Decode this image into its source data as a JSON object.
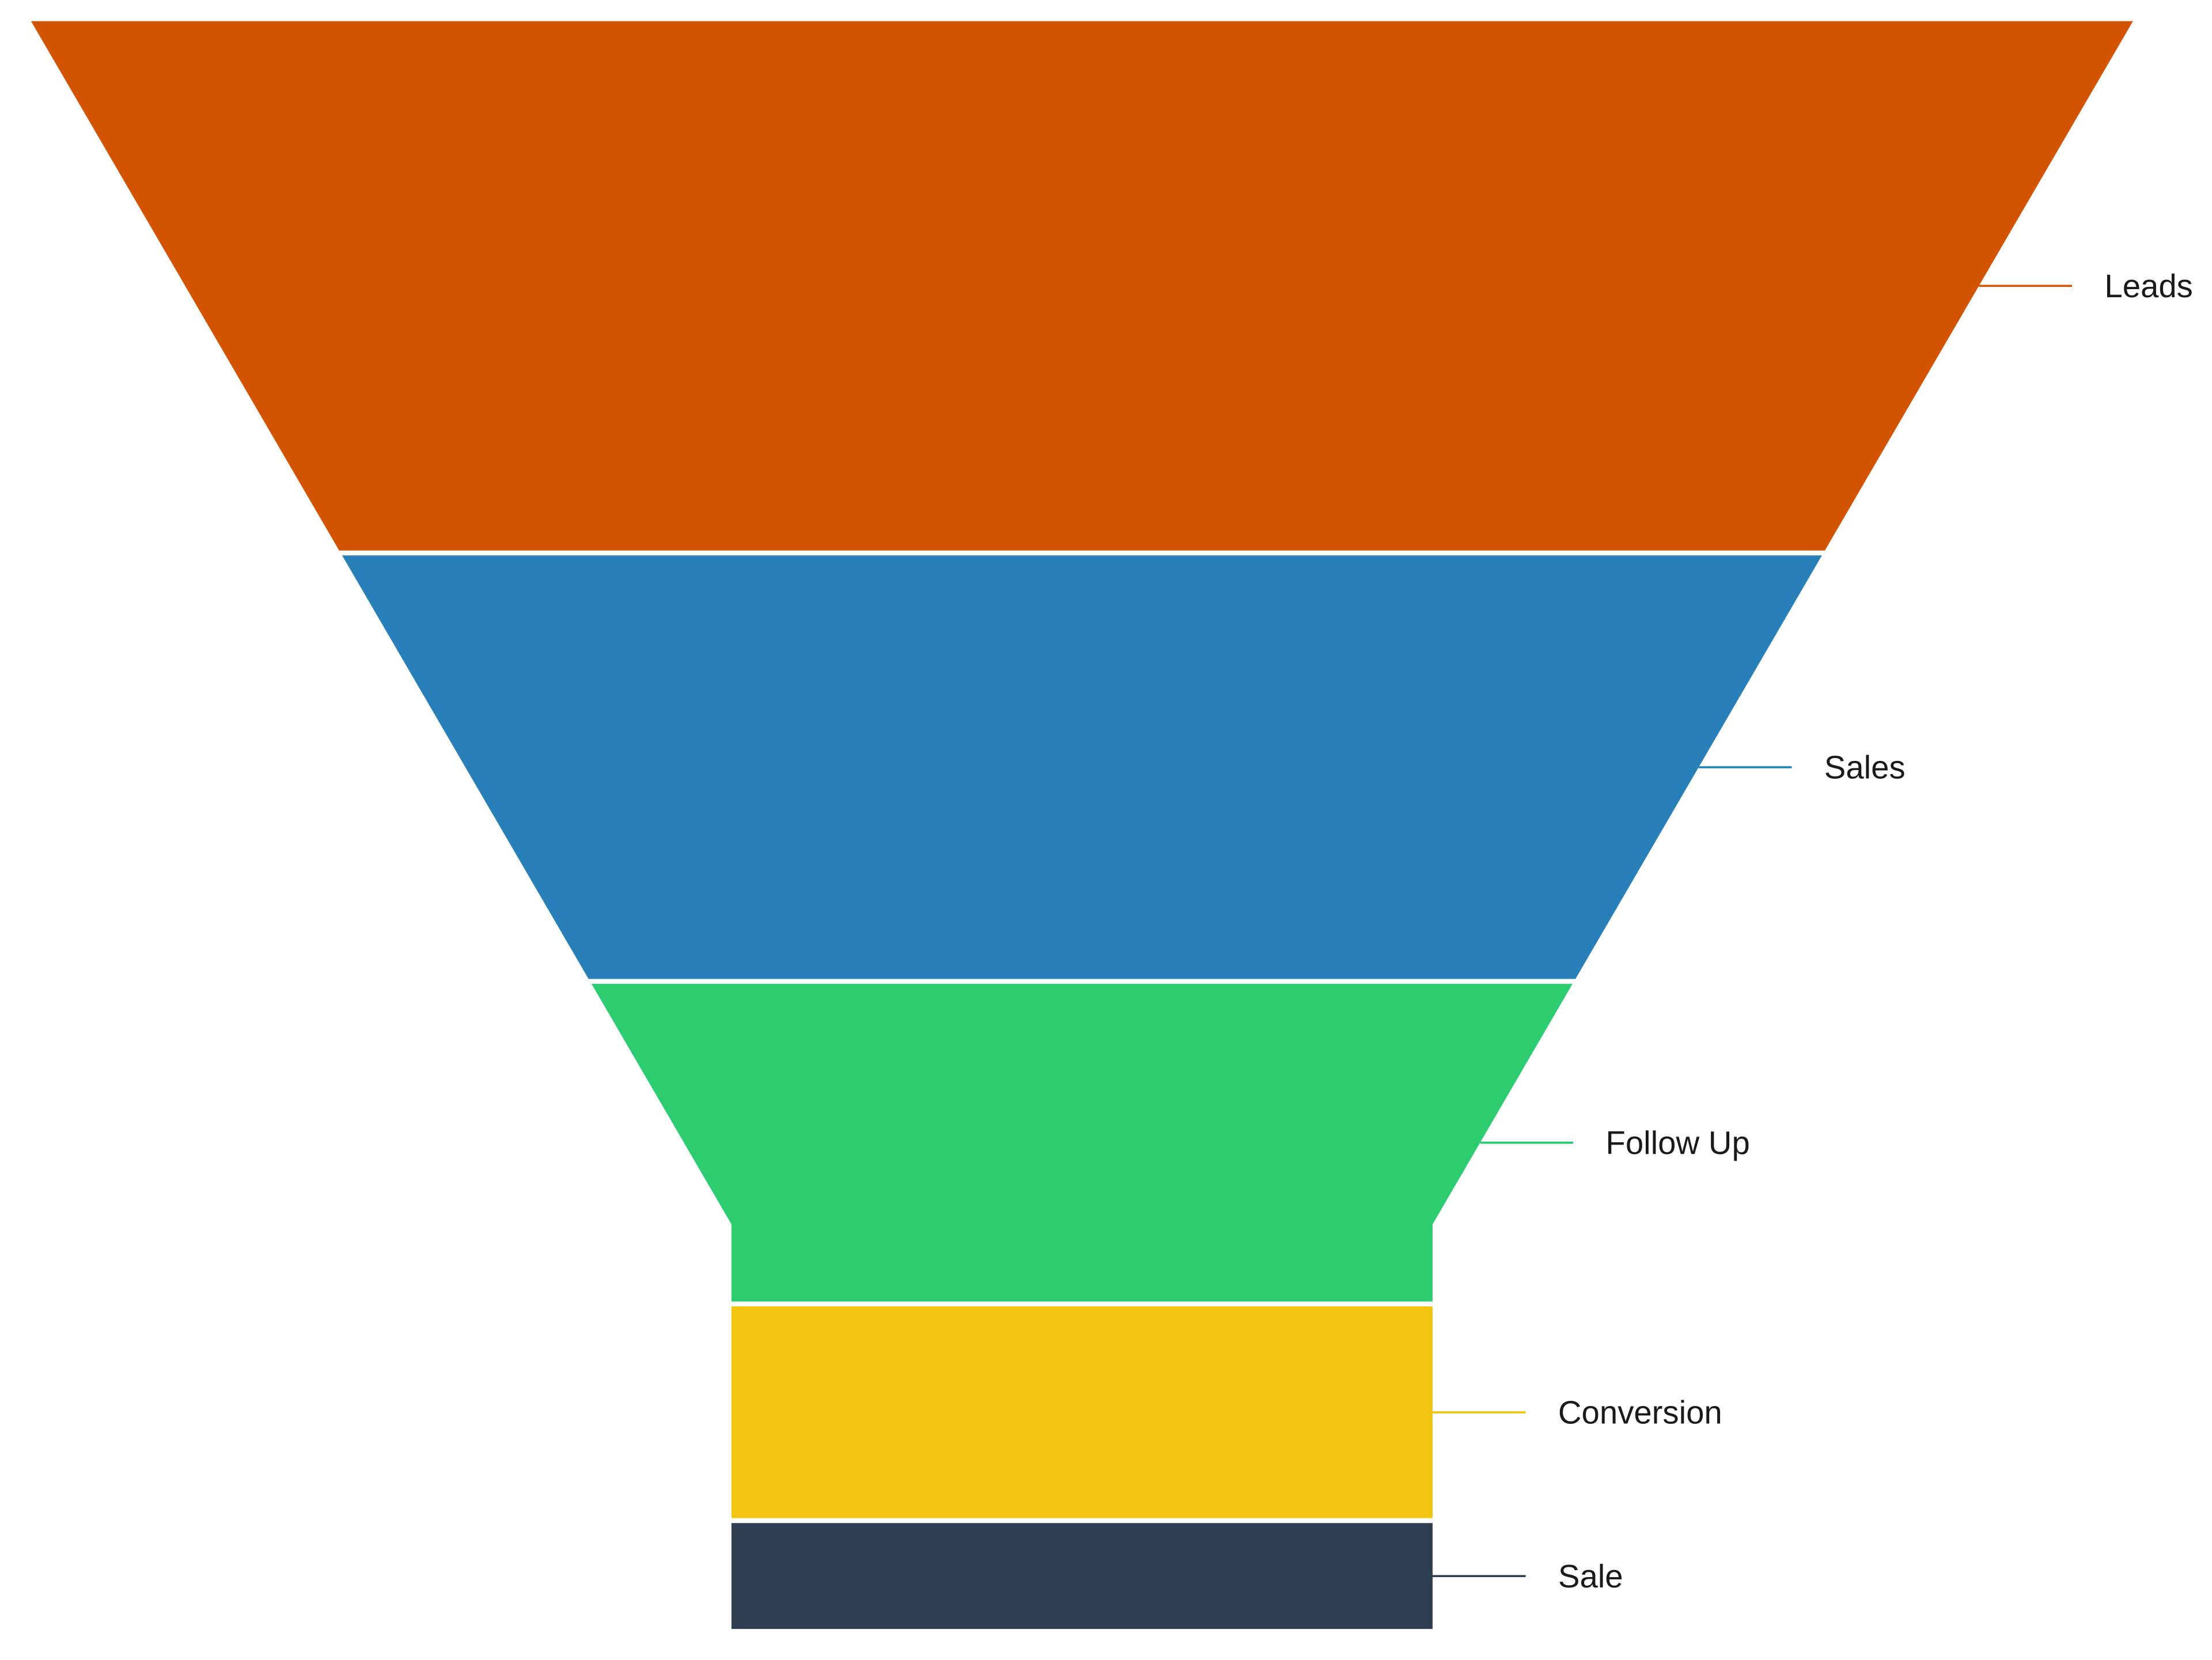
{
  "chart_data": {
    "type": "funnel",
    "categories": [
      "Leads",
      "Sales",
      "Follow Up",
      "Conversion",
      "Sale"
    ],
    "values": [
      5,
      4,
      3,
      2,
      1
    ],
    "colors": [
      "#d35400",
      "#2980b9",
      "#2ecc71",
      "#f1c40f",
      "#2c3e50"
    ],
    "legend": "labels-right",
    "grid": false
  }
}
